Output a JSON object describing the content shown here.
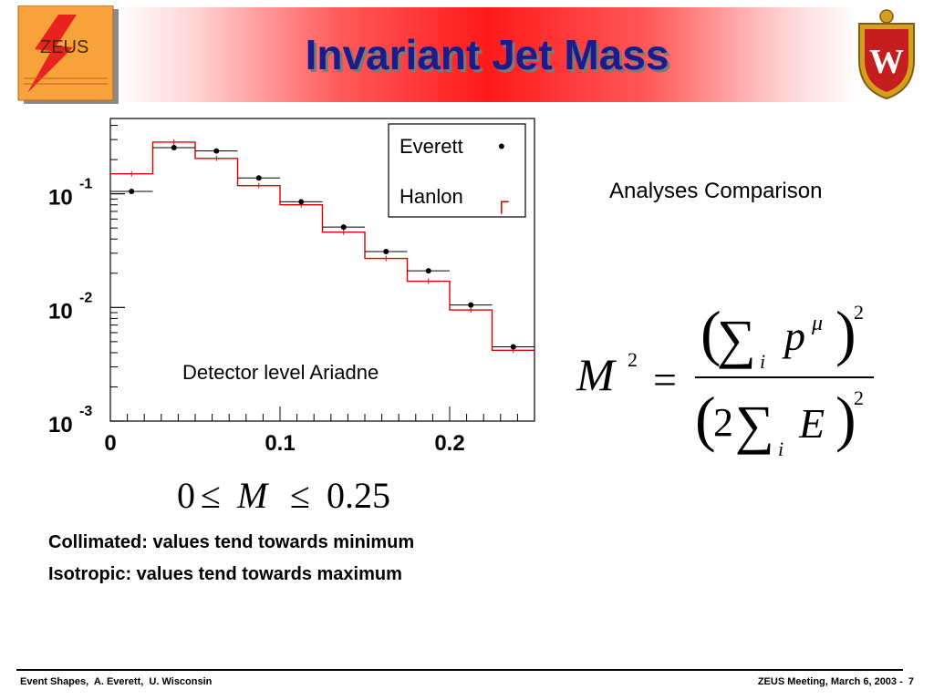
{
  "slide": {
    "title": "Invariant Jet Mass",
    "left_logo_text": "ZEUS",
    "right_logo_text": "W",
    "analyses_label": "Analyses Comparison",
    "notes": [
      "Collimated: values tend towards minimum",
      "Isotropic: values tend towards maximum"
    ],
    "footer_left": "Event Shapes,  A. Everett,  U. Wisconsin",
    "footer_right": "ZEUS Meeting, March 6, 2003 -  7"
  },
  "formula": {
    "lhs": "M",
    "lhs_exp": "2",
    "equals": "=",
    "numerator_sum": "∑",
    "numerator_sub": "i",
    "numerator_var": "p",
    "numerator_sup": "μ",
    "numerator_exp": "2",
    "denominator_coef": "2",
    "denominator_sum": "∑",
    "denominator_sub": "i",
    "denominator_var": "E",
    "denominator_exp": "2",
    "range_low": "0",
    "range_var": "M",
    "range_high": "0.25",
    "leq": "≤"
  },
  "chart_data": {
    "type": "scatter",
    "annotation": "Detector level Ariadne",
    "x_range": [
      0,
      0.25
    ],
    "y_range": [
      0.001,
      0.46
    ],
    "y_scale": "log",
    "x_ticks": [
      {
        "value": 0,
        "label": "0"
      },
      {
        "value": 0.1,
        "label": "0.1"
      },
      {
        "value": 0.2,
        "label": "0.2"
      }
    ],
    "y_ticks": [
      {
        "value": 0.1,
        "base": "10",
        "exp": "-1"
      },
      {
        "value": 0.01,
        "base": "10",
        "exp": "-2"
      },
      {
        "value": 0.001,
        "base": "10",
        "exp": "-3"
      }
    ],
    "legend_position": "top-right",
    "bin_edges": [
      0,
      0.025,
      0.05,
      0.075,
      0.1,
      0.125,
      0.15,
      0.175,
      0.2,
      0.225,
      0.25
    ],
    "series": [
      {
        "name": "Everett",
        "marker": "•",
        "style": "points",
        "color": "#000000",
        "values": [
          0.105,
          0.255,
          0.238,
          0.138,
          0.085,
          0.051,
          0.031,
          0.021,
          0.0105,
          0.0045
        ]
      },
      {
        "name": "Hanlon",
        "marker": "┌",
        "style": "histogram",
        "color": "#e00000",
        "values": [
          0.15,
          0.285,
          0.205,
          0.118,
          0.08,
          0.046,
          0.027,
          0.017,
          0.0095,
          0.0042
        ]
      }
    ]
  }
}
